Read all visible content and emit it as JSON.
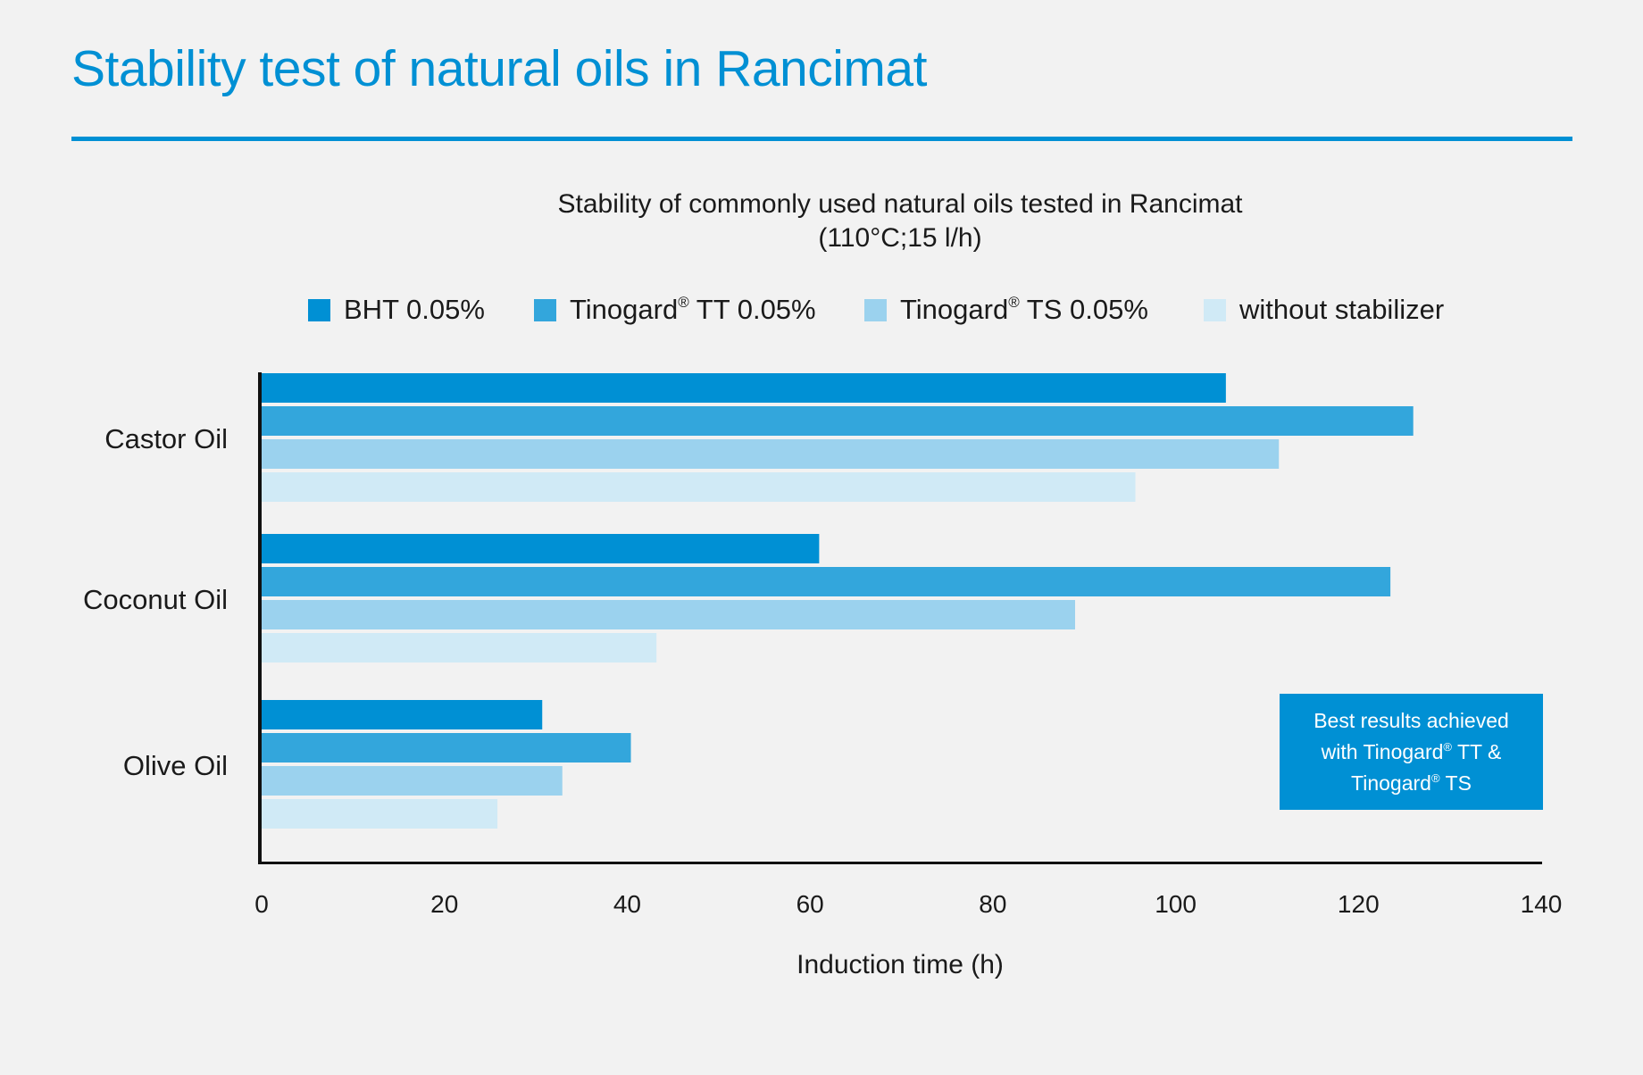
{
  "page": {
    "title": "Stability test of natural oils in Rancimat"
  },
  "chart_data": {
    "type": "bar",
    "orientation": "horizontal",
    "title": "Stability of commonly used natural oils tested in Rancimat",
    "subtitle": "(110°C;15 l/h)",
    "xlabel": "Induction time (h)",
    "ylabel": "",
    "xlim": [
      0,
      140
    ],
    "x_ticks": [
      "0",
      "20",
      "40",
      "60",
      "80",
      "100",
      "120",
      "140"
    ],
    "categories": [
      "Castor Oil",
      "Coconut Oil",
      "Olive Oil"
    ],
    "series": [
      {
        "name": "BHT 0.05%",
        "color": "#0090d4",
        "values": [
          105.5,
          61,
          30.7
        ]
      },
      {
        "name": "Tinogard® TT 0.05%",
        "color": "#33a6dc",
        "values": [
          126,
          123.5,
          40.4
        ]
      },
      {
        "name": "Tinogard® TS 0.05%",
        "color": "#9bd2ee",
        "values": [
          111.3,
          89,
          32.9
        ]
      },
      {
        "name": "without stabilizer",
        "color": "#d0eaf6",
        "values": [
          95.6,
          43.2,
          25.8
        ]
      }
    ],
    "grid": false,
    "legend_position": "top",
    "annotation": "Best results achieved with Tinogard® TT & Tinogard® TS"
  },
  "legend": [
    {
      "pre": "BHT 0.05%",
      "sup": "",
      "post": ""
    },
    {
      "pre": "Tinogard",
      "sup": "®",
      "post": " TT 0.05%"
    },
    {
      "pre": "Tinogard",
      "sup": "®",
      "post": " TS 0.05%"
    },
    {
      "pre": "without stabilizer",
      "sup": "",
      "post": ""
    }
  ],
  "callout": {
    "line1": "Best results achieved",
    "line2_pre": "with Tinogard",
    "line2_sup": "®",
    "line2_post": " TT &",
    "line3_pre": "Tinogard",
    "line3_sup": "®",
    "line3_post": " TS"
  }
}
